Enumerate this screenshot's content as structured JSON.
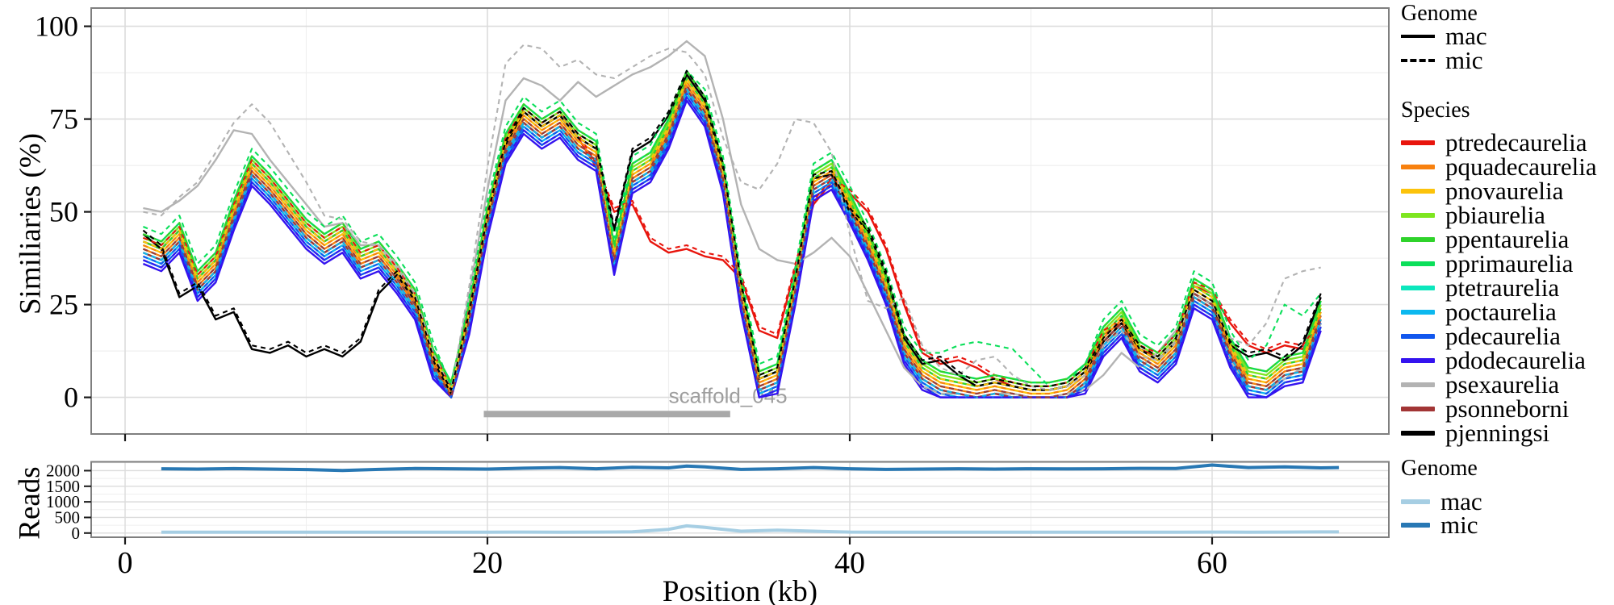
{
  "chart_data": {
    "type": "line",
    "title": "",
    "xlabel": "Position (kb)",
    "xticks": [
      0,
      20,
      40,
      60
    ],
    "x_minor_gridlines": [
      10,
      30,
      50
    ],
    "xlim": [
      -1.9,
      69.8
    ],
    "panels": [
      {
        "name": "similarity",
        "ylabel": "Similiaries (%)",
        "yticks": [
          0,
          25,
          50,
          75,
          100
        ],
        "y_minor_gridlines": [
          12.5,
          37.5,
          62.5,
          87.5
        ],
        "ylim": [
          -10,
          105
        ],
        "x_start": 1,
        "x_step": 1,
        "genome_styles": {
          "mac": "solid",
          "mic": "dashed"
        },
        "base_values": [
          41,
          39,
          44,
          31,
          36,
          50,
          62,
          57,
          51,
          45,
          41,
          44,
          37,
          39,
          33,
          26,
          10,
          1,
          22,
          48,
          68,
          76,
          72,
          75,
          69,
          66,
          38,
          60,
          63,
          72,
          85,
          78,
          60,
          28,
          4,
          6,
          30,
          58,
          61,
          52,
          42,
          30,
          14,
          7,
          4,
          3,
          2,
          3,
          2,
          1,
          1,
          2,
          6,
          16,
          21,
          12,
          9,
          14,
          29,
          26,
          13,
          5,
          4,
          8,
          9,
          23
        ],
        "species": [
          {
            "name": "ptredecaurelia",
            "color": "#e8150d",
            "mac_offset": 0,
            "mic_offset": 1
          },
          {
            "name": "pquadecaurelia",
            "color": "#f8810f",
            "mac_offset": -1,
            "mic_offset": 0
          },
          {
            "name": "pnovaurelia",
            "color": "#fcc30b",
            "mac_offset": 0,
            "mic_offset": 1
          },
          {
            "name": "pbiaurelia",
            "color": "#7ee620",
            "mac_offset": 2,
            "mic_offset": 3
          },
          {
            "name": "ppentaurelia",
            "color": "#2fd32b",
            "mac_offset": 1,
            "mic_offset": 3
          },
          {
            "name": "pprimaurelia",
            "color": "#0bdf5a",
            "mac_offset": 3,
            "mic_offset": 5
          },
          {
            "name": "ptetraurelia",
            "color": "#0ce7bd",
            "mac_offset": -2,
            "mic_offset": -1
          },
          {
            "name": "poctaurelia",
            "color": "#0cb8ef",
            "mac_offset": -3,
            "mic_offset": -2
          },
          {
            "name": "pdecaurelia",
            "color": "#1157ee",
            "mac_offset": -4,
            "mic_offset": -3
          },
          {
            "name": "pdodecaurelia",
            "color": "#3413ef",
            "mac_offset": -5,
            "mic_offset": -4
          },
          {
            "name": "psexaurelia",
            "color": "#b3b3b3",
            "mac_offset": 0,
            "mic_offset": 0
          },
          {
            "name": "psonneborni",
            "color": "#a23535",
            "mac_offset": -2,
            "mic_offset": -1
          },
          {
            "name": "pjenningsi",
            "color": "#000000",
            "mac_offset": 0,
            "mic_offset": 1
          }
        ],
        "series_overrides": {
          "ptredecaurelia.mac": [
            42,
            40,
            45,
            32,
            37,
            51,
            63,
            58,
            52,
            46,
            42,
            45,
            38,
            40,
            34,
            27,
            11,
            2,
            23,
            49,
            69,
            77,
            73,
            76,
            70,
            62,
            50,
            52,
            42,
            39,
            40,
            38,
            37,
            32,
            18,
            16,
            35,
            52,
            58,
            55,
            50,
            40,
            25,
            12,
            9,
            10,
            8,
            5,
            3,
            2,
            2,
            3,
            7,
            17,
            20,
            13,
            11,
            16,
            30,
            28,
            20,
            14,
            12,
            14,
            13,
            20
          ],
          "psexaurelia.mac": [
            51,
            50,
            53,
            57,
            64,
            72,
            71,
            64,
            58,
            52,
            46,
            47,
            41,
            41,
            35,
            27,
            11,
            2,
            28,
            56,
            80,
            86,
            84,
            80,
            85,
            81,
            84,
            87,
            89,
            92,
            96,
            92,
            75,
            52,
            40,
            37,
            36,
            39,
            43,
            38,
            28,
            18,
            8,
            3,
            1,
            1,
            0,
            1,
            1,
            0,
            0,
            1,
            2,
            6,
            12,
            8,
            12,
            18,
            27,
            24,
            10,
            3,
            2,
            5,
            8,
            20
          ],
          "psexaurelia.mic": [
            50,
            49,
            54,
            58,
            66,
            74,
            79,
            74,
            66,
            58,
            49,
            48,
            42,
            41,
            36,
            28,
            12,
            2,
            30,
            62,
            90,
            95,
            94,
            89,
            91,
            87,
            86,
            89,
            92,
            94,
            93,
            87,
            70,
            58,
            56,
            63,
            75,
            74,
            66,
            44,
            26,
            24,
            27,
            14,
            8,
            6,
            10,
            11,
            6,
            3,
            2,
            3,
            6,
            14,
            18,
            11,
            10,
            15,
            28,
            25,
            16,
            14,
            20,
            32,
            34,
            35
          ],
          "pprimaurelia.mic": [
            46,
            44,
            49,
            36,
            41,
            55,
            67,
            62,
            56,
            50,
            46,
            49,
            42,
            44,
            38,
            31,
            15,
            3,
            27,
            53,
            73,
            81,
            77,
            80,
            74,
            71,
            43,
            65,
            68,
            77,
            88,
            83,
            65,
            33,
            9,
            11,
            35,
            63,
            66,
            57,
            47,
            35,
            19,
            12,
            12,
            14,
            15,
            14,
            13,
            8,
            3,
            4,
            9,
            21,
            26,
            17,
            14,
            19,
            34,
            31,
            18,
            10,
            14,
            25,
            22,
            28
          ],
          "pjenningsi.mac": [
            44,
            40,
            27,
            30,
            21,
            23,
            13,
            12,
            14,
            11,
            13,
            11,
            15,
            28,
            33,
            26,
            10,
            1,
            22,
            48,
            68,
            77,
            73,
            76,
            70,
            67,
            45,
            66,
            69,
            76,
            87,
            80,
            62,
            30,
            5,
            7,
            31,
            59,
            60,
            50,
            45,
            33,
            16,
            9,
            10,
            6,
            3,
            4,
            3,
            2,
            2,
            3,
            7,
            15,
            20,
            13,
            10,
            15,
            28,
            25,
            14,
            11,
            12,
            10,
            14,
            27
          ]
        },
        "annotation": {
          "label": "scaffold_045",
          "label_color": "#9e9e9e",
          "bar_color": "#a9a9a9",
          "bar_from_kb": 19.8,
          "bar_to_kb": 33.4,
          "bar_value": -4.5,
          "label_value": -1.5
        }
      },
      {
        "name": "reads",
        "ylabel": "Reads",
        "yticks": [
          0,
          500,
          1000,
          1500,
          2000
        ],
        "y_minor_gridlines": [
          250,
          750,
          1250,
          1750,
          2250
        ],
        "ylim": [
          -150,
          2280
        ],
        "x": [
          2,
          4,
          6,
          8,
          10,
          12,
          14,
          16,
          18,
          20,
          22,
          24,
          26,
          28,
          30,
          31,
          32,
          34,
          36,
          38,
          40,
          42,
          44,
          46,
          48,
          50,
          52,
          54,
          56,
          58,
          60,
          62,
          64,
          66,
          67
        ],
        "series": [
          {
            "name": "mac",
            "color": "#a6cee3",
            "values": [
              25,
              25,
              25,
              25,
              25,
              25,
              25,
              25,
              25,
              28,
              30,
              28,
              30,
              40,
              120,
              230,
              180,
              60,
              90,
              60,
              30,
              28,
              25,
              25,
              25,
              25,
              25,
              25,
              25,
              25,
              30,
              28,
              30,
              35,
              35
            ]
          },
          {
            "name": "mic",
            "color": "#2878b4",
            "values": [
              2060,
              2050,
              2065,
              2050,
              2035,
              2005,
              2040,
              2070,
              2060,
              2050,
              2080,
              2100,
              2060,
              2110,
              2090,
              2150,
              2120,
              2040,
              2060,
              2100,
              2060,
              2040,
              2050,
              2060,
              2050,
              2060,
              2055,
              2060,
              2075,
              2070,
              2180,
              2100,
              2120,
              2090,
              2100
            ]
          }
        ]
      }
    ]
  },
  "legends": {
    "genome": {
      "title": "Genome",
      "items": [
        {
          "label": "mac",
          "style": "solid"
        },
        {
          "label": "mic",
          "style": "dashed"
        }
      ]
    },
    "species": {
      "title": "Species"
    },
    "reads_genome": {
      "title": "Genome",
      "items": [
        {
          "label": "mac",
          "color": "#a6cee3"
        },
        {
          "label": "mic",
          "color": "#2878b4"
        }
      ]
    }
  },
  "theme": {
    "grid_major": "#dcdcdc",
    "grid_minor": "#efefef",
    "panel_border": "#7f7f7f",
    "tick_color": "#1a1a1a",
    "text_color": "#000000"
  }
}
